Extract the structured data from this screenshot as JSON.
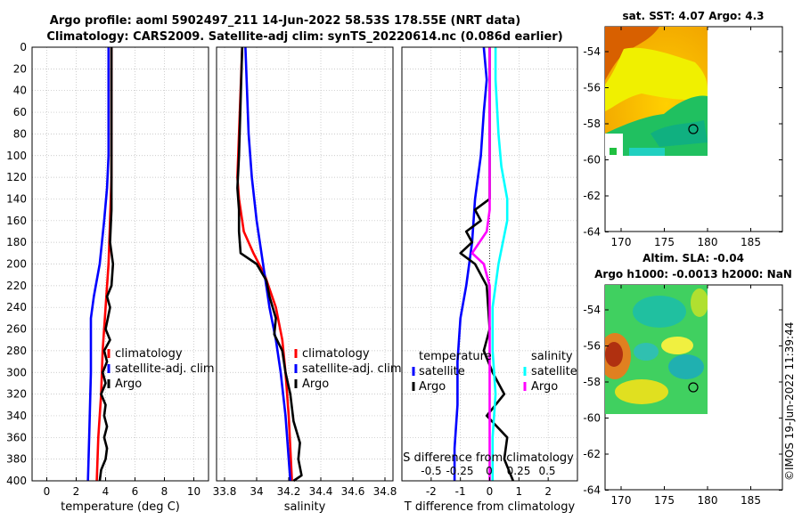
{
  "title": {
    "line1": "Argo profile: aoml 5902497_211 14-Jun-2022 58.53S 178.55E (NRT data)",
    "line2": "Climatology: CARS2009. Satellite-adj clim: synTS_20220614.nc (0.086d earlier)"
  },
  "colors": {
    "climatology": "#ff0000",
    "satellite_adj": "#0000ff",
    "argo": "#000000",
    "satellite_s": "#00ffff",
    "argo_s": "#ff00ff"
  },
  "chart_data": [
    {
      "type": "line",
      "id": "temperature",
      "xlabel": "temperature (deg C)",
      "xlim": [
        -1,
        11
      ],
      "xticks": [
        0,
        2,
        4,
        6,
        8,
        10
      ],
      "ylim": [
        0,
        400
      ],
      "yticks": [
        0,
        20,
        40,
        60,
        80,
        100,
        120,
        140,
        160,
        180,
        200,
        220,
        240,
        260,
        280,
        300,
        320,
        340,
        360,
        380,
        400
      ],
      "grid": true,
      "legend": [
        "climatology",
        "satellite-adj. clim",
        "Argo"
      ],
      "series": [
        {
          "name": "climatology",
          "color": "#ff0000",
          "points": [
            [
              4.4,
              0
            ],
            [
              4.4,
              60
            ],
            [
              4.4,
              120
            ],
            [
              4.3,
              160
            ],
            [
              4.2,
              200
            ],
            [
              4.0,
              240
            ],
            [
              3.8,
              280
            ],
            [
              3.7,
              320
            ],
            [
              3.5,
              360
            ],
            [
              3.4,
              400
            ]
          ]
        },
        {
          "name": "satellite-adj. clim",
          "color": "#0000ff",
          "points": [
            [
              4.2,
              0
            ],
            [
              4.2,
              50
            ],
            [
              4.2,
              100
            ],
            [
              4.1,
              130
            ],
            [
              3.9,
              160
            ],
            [
              3.6,
              200
            ],
            [
              3.2,
              230
            ],
            [
              3.0,
              250
            ],
            [
              3.0,
              300
            ],
            [
              2.9,
              350
            ],
            [
              2.8,
              400
            ]
          ]
        },
        {
          "name": "Argo",
          "color": "#000000",
          "points": [
            [
              4.4,
              0
            ],
            [
              4.4,
              50
            ],
            [
              4.4,
              100
            ],
            [
              4.4,
              150
            ],
            [
              4.3,
              180
            ],
            [
              4.5,
              200
            ],
            [
              4.4,
              220
            ],
            [
              4.1,
              230
            ],
            [
              4.3,
              240
            ],
            [
              4.0,
              260
            ],
            [
              4.3,
              270
            ],
            [
              3.9,
              280
            ],
            [
              4.1,
              290
            ],
            [
              3.8,
              300
            ],
            [
              4.0,
              310
            ],
            [
              3.7,
              320
            ],
            [
              4.0,
              330
            ],
            [
              3.9,
              340
            ],
            [
              4.1,
              350
            ],
            [
              3.9,
              360
            ],
            [
              4.1,
              370
            ],
            [
              4.0,
              380
            ],
            [
              3.7,
              390
            ],
            [
              3.6,
              400
            ]
          ]
        }
      ]
    },
    {
      "type": "line",
      "id": "salinity",
      "xlabel": "salinity",
      "xlim": [
        33.75,
        34.85
      ],
      "xticks": [
        33.8,
        34,
        34.2,
        34.4,
        34.6,
        34.8
      ],
      "xticklabels": [
        "33.8",
        "34",
        "34.2",
        "34.4",
        "34.6",
        "34.8"
      ],
      "ylim": [
        0,
        400
      ],
      "grid": true,
      "legend": [
        "climatology",
        "satellite-adj. clim",
        "Argo"
      ],
      "series": [
        {
          "name": "climatology",
          "color": "#ff0000",
          "points": [
            [
              33.91,
              0
            ],
            [
              33.9,
              40
            ],
            [
              33.89,
              80
            ],
            [
              33.88,
              120
            ],
            [
              33.89,
              140
            ],
            [
              33.92,
              170
            ],
            [
              33.98,
              190
            ],
            [
              34.05,
              210
            ],
            [
              34.12,
              240
            ],
            [
              34.16,
              270
            ],
            [
              34.18,
              300
            ],
            [
              34.2,
              340
            ],
            [
              34.22,
              400
            ]
          ]
        },
        {
          "name": "satellite-adj. clim",
          "color": "#0000ff",
          "points": [
            [
              33.93,
              0
            ],
            [
              33.94,
              40
            ],
            [
              33.95,
              80
            ],
            [
              33.97,
              120
            ],
            [
              34.0,
              160
            ],
            [
              34.04,
              200
            ],
            [
              34.08,
              240
            ],
            [
              34.12,
              270
            ],
            [
              34.15,
              300
            ],
            [
              34.18,
              340
            ],
            [
              34.21,
              400
            ]
          ]
        },
        {
          "name": "Argo",
          "color": "#000000",
          "points": [
            [
              33.91,
              0
            ],
            [
              33.9,
              50
            ],
            [
              33.89,
              100
            ],
            [
              33.88,
              130
            ],
            [
              33.89,
              150
            ],
            [
              33.89,
              170
            ],
            [
              33.9,
              190
            ],
            [
              34.0,
              200
            ],
            [
              34.06,
              215
            ],
            [
              34.08,
              230
            ],
            [
              34.12,
              250
            ],
            [
              34.11,
              265
            ],
            [
              34.16,
              280
            ],
            [
              34.18,
              300
            ],
            [
              34.21,
              320
            ],
            [
              34.23,
              345
            ],
            [
              34.27,
              365
            ],
            [
              34.26,
              380
            ],
            [
              34.28,
              395
            ],
            [
              34.23,
              400
            ]
          ]
        }
      ]
    },
    {
      "type": "line",
      "id": "difference",
      "xlabel": "T difference from climatology",
      "xlim": [
        -3,
        3
      ],
      "xticks": [
        -2,
        -1,
        0,
        1,
        2
      ],
      "x2label": "S difference from climatology",
      "x2ticks": [
        "-0.5",
        "-0.25",
        "0",
        "0.25",
        "0.5"
      ],
      "ylim": [
        0,
        400
      ],
      "grid": true,
      "legend_left_title": "temperature",
      "legend_right_title": "salinity",
      "legend_left": [
        "satellite",
        "Argo"
      ],
      "legend_right": [
        "satellite",
        "Argo"
      ],
      "series": [
        {
          "name": "T satellite",
          "color": "#0000ff",
          "points": [
            [
              -0.2,
              0
            ],
            [
              -0.1,
              30
            ],
            [
              -0.2,
              60
            ],
            [
              -0.3,
              100
            ],
            [
              -0.5,
              140
            ],
            [
              -0.6,
              180
            ],
            [
              -0.8,
              220
            ],
            [
              -1.0,
              250
            ],
            [
              -1.1,
              290
            ],
            [
              -1.1,
              330
            ],
            [
              -1.2,
              370
            ],
            [
              -1.2,
              400
            ]
          ]
        },
        {
          "name": "T Argo",
          "color": "#000000",
          "points": [
            [
              0,
              0
            ],
            [
              0,
              60
            ],
            [
              0,
              120
            ],
            [
              0,
              140
            ],
            [
              -0.5,
              150
            ],
            [
              -0.3,
              160
            ],
            [
              -0.8,
              170
            ],
            [
              -0.6,
              180
            ],
            [
              -1.0,
              190
            ],
            [
              -0.5,
              200
            ],
            [
              -0.1,
              220
            ],
            [
              0,
              260
            ],
            [
              -0.2,
              280
            ],
            [
              0.1,
              300
            ],
            [
              0.5,
              320
            ],
            [
              -0.1,
              340
            ],
            [
              0.6,
              360
            ],
            [
              0.5,
              380
            ],
            [
              0.8,
              400
            ]
          ]
        },
        {
          "name": "S satellite",
          "color": "#00ffff",
          "points": [
            [
              0.2,
              0
            ],
            [
              0.2,
              30
            ],
            [
              0.3,
              80
            ],
            [
              0.4,
              110
            ],
            [
              0.6,
              140
            ],
            [
              0.6,
              160
            ],
            [
              0.3,
              200
            ],
            [
              0.1,
              240
            ],
            [
              0.1,
              280
            ],
            [
              0.2,
              320
            ],
            [
              0.1,
              360
            ],
            [
              0.1,
              400
            ]
          ]
        },
        {
          "name": "S Argo",
          "color": "#ff00ff",
          "points": [
            [
              0,
              0
            ],
            [
              0,
              60
            ],
            [
              0,
              120
            ],
            [
              0,
              150
            ],
            [
              -0.1,
              170
            ],
            [
              -0.6,
              190
            ],
            [
              -0.2,
              200
            ],
            [
              0,
              220
            ],
            [
              0,
              280
            ],
            [
              0,
              400
            ]
          ]
        }
      ]
    }
  ],
  "maps": [
    {
      "id": "sst",
      "title": "sat. SST: 4.07 Argo: 4.3",
      "xticks": [
        "170",
        "175",
        "180",
        "185"
      ],
      "yticks": [
        "-54",
        "-56",
        "-58",
        "-60",
        "-62",
        "-64"
      ]
    },
    {
      "id": "sla",
      "title1": "Altim. SLA: -0.04",
      "title2": "Argo h1000: -0.0013 h2000: NaN",
      "xticks": [
        "170",
        "175",
        "180",
        "185"
      ],
      "yticks": [
        "-54",
        "-56",
        "-58",
        "-60",
        "-62",
        "-64"
      ]
    }
  ],
  "credit": "©IMOS 19-Jun-2022 11:39:44"
}
